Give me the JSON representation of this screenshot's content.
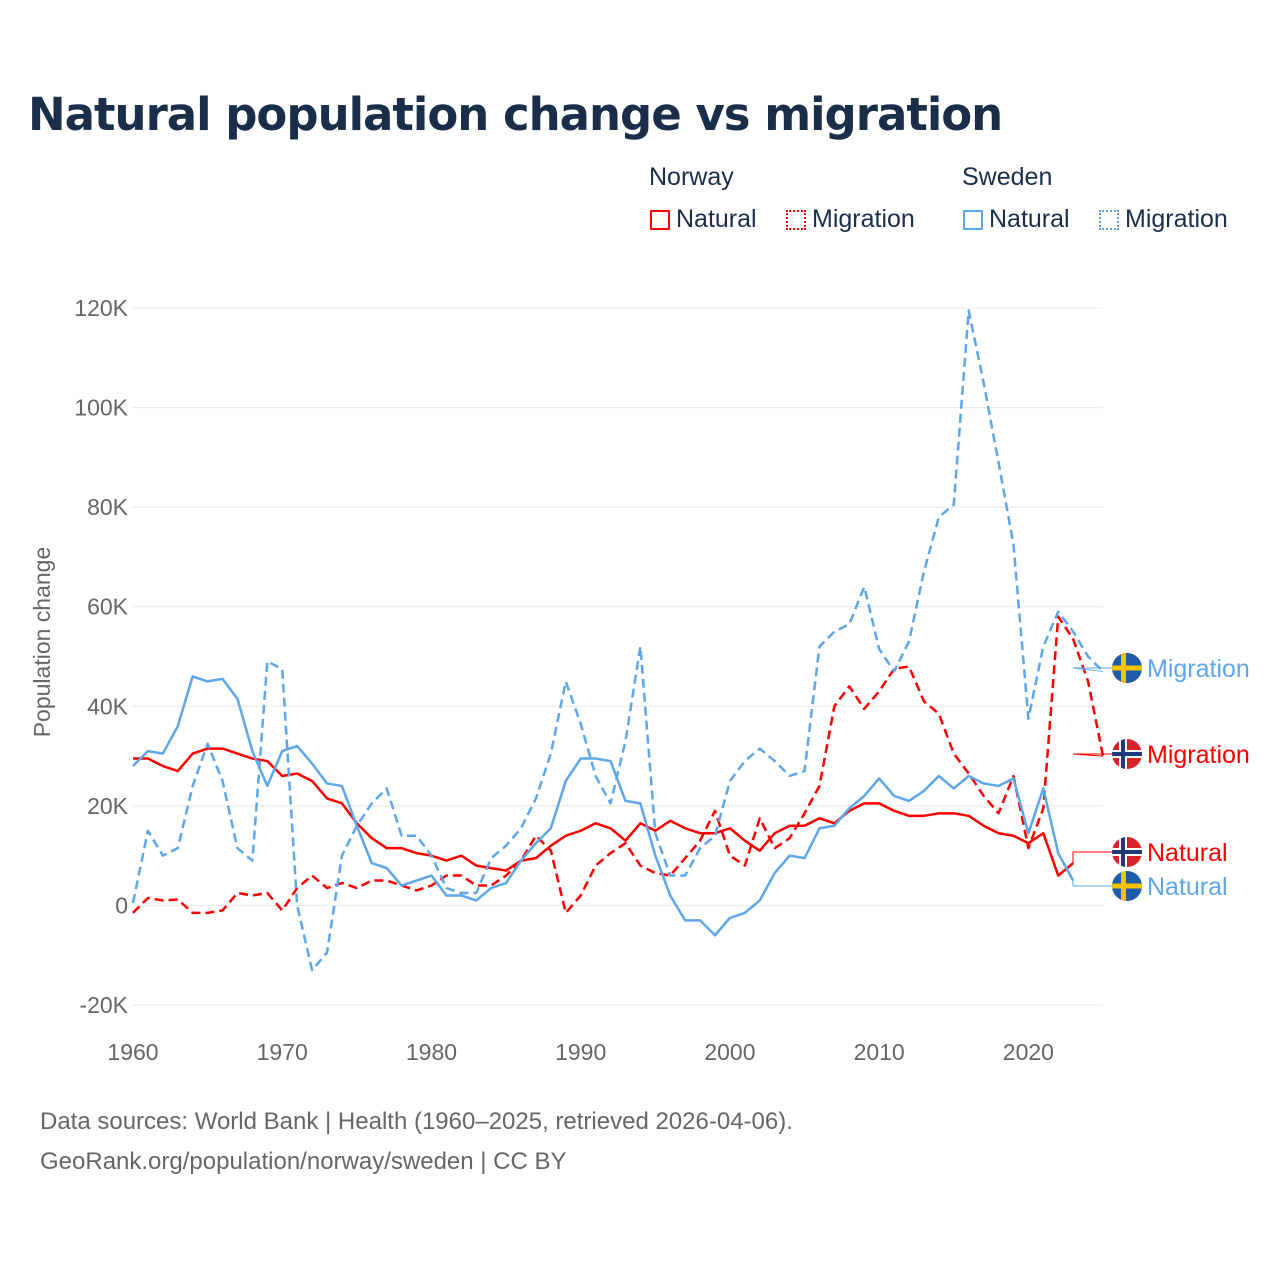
{
  "title": "Natural population change vs migration",
  "legend": {
    "groups": [
      {
        "name": "Norway",
        "items": [
          "Natural",
          "Migration"
        ]
      },
      {
        "name": "Sweden",
        "items": [
          "Natural",
          "Migration"
        ]
      }
    ]
  },
  "colors": {
    "norway": "#ff0000",
    "sweden": "#5ea6ea",
    "title": "#1a2e4a"
  },
  "footer": {
    "line1": "Data sources: World Bank | Health (1960–2025, retrieved 2026-04-06).",
    "line2": "GeoRank.org/population/norway/sweden | CC BY"
  },
  "chart_data": {
    "type": "line",
    "title": "Natural population change vs migration",
    "xlabel": "",
    "ylabel": "Population change",
    "xlim": [
      1960,
      2025
    ],
    "ylim": [
      -20000,
      120000
    ],
    "x_ticks": [
      "1960",
      "1970",
      "1980",
      "1990",
      "2000",
      "2010",
      "2020"
    ],
    "y_ticks": [
      "-20K",
      "0",
      "20K",
      "40K",
      "60K",
      "80K",
      "100K",
      "120K"
    ],
    "grid": true,
    "legend_position": "top-right",
    "end_labels": [
      "Migration",
      "Migration",
      "Natural",
      "Natural"
    ],
    "series": [
      {
        "name": "Norway Natural",
        "country": "Norway",
        "kind": "Natural",
        "style": "solid",
        "start": 1960,
        "values": [
          29500,
          29500,
          28000,
          27000,
          30500,
          31500,
          31500,
          30500,
          29500,
          29000,
          26000,
          26500,
          25000,
          21500,
          20500,
          16500,
          13500,
          11500,
          11500,
          10500,
          10000,
          9000,
          10000,
          8000,
          7500,
          7000,
          9000,
          9500,
          12000,
          14000,
          15000,
          16500,
          15500,
          13000,
          16500,
          15000,
          17000,
          15500,
          14500,
          14500,
          15500,
          13000,
          11000,
          14500,
          16000,
          16000,
          17500,
          16500,
          19000,
          20500,
          20500,
          19000,
          18000,
          18000,
          18500,
          18500,
          18000,
          16000,
          14500,
          14000,
          12500,
          14500,
          6000,
          8500
        ]
      },
      {
        "name": "Norway Migration",
        "country": "Norway",
        "kind": "Migration",
        "style": "dashed",
        "start": 1960,
        "values": [
          -1500,
          1500,
          1000,
          1200,
          -1500,
          -1500,
          -1000,
          2500,
          2000,
          2500,
          -1000,
          3500,
          6000,
          3500,
          4500,
          3500,
          5000,
          5000,
          4000,
          3000,
          4000,
          6000,
          6000,
          4000,
          4000,
          6000,
          9000,
          14000,
          11000,
          -1500,
          2000,
          8000,
          10500,
          12500,
          8000,
          6500,
          6000,
          9500,
          13000,
          19000,
          10000,
          8000,
          17500,
          11500,
          13500,
          18500,
          24000,
          40000,
          44000,
          39500,
          43000,
          47500,
          48000,
          41000,
          38500,
          30500,
          26500,
          22000,
          18500,
          26000,
          11500,
          19500,
          58000,
          53500,
          45000,
          30000
        ]
      },
      {
        "name": "Sweden Natural",
        "country": "Sweden",
        "kind": "Natural",
        "style": "solid",
        "start": 1960,
        "values": [
          28000,
          31000,
          30500,
          36000,
          46000,
          45000,
          45500,
          41500,
          31000,
          24000,
          31000,
          32000,
          28500,
          24500,
          24000,
          16000,
          8500,
          7500,
          4000,
          5000,
          6000,
          2000,
          2000,
          1000,
          3500,
          4500,
          9000,
          12500,
          15500,
          25000,
          29500,
          29500,
          29000,
          21000,
          20500,
          10000,
          2000,
          -3000,
          -3000,
          -6000,
          -2500,
          -1500,
          1000,
          6500,
          10000,
          9500,
          15500,
          16000,
          19500,
          22000,
          25500,
          22000,
          21000,
          23000,
          26000,
          23500,
          26000,
          24500,
          24000,
          25500,
          14500,
          23500,
          10500,
          5000
        ]
      },
      {
        "name": "Sweden Migration",
        "country": "Sweden",
        "kind": "Migration",
        "style": "dashed",
        "start": 1960,
        "values": [
          500,
          15000,
          10000,
          11500,
          24000,
          32500,
          25000,
          11500,
          9000,
          49000,
          47500,
          0,
          -13000,
          -9500,
          10000,
          16000,
          20500,
          23500,
          14000,
          14000,
          10000,
          3500,
          2500,
          2500,
          9500,
          12000,
          15500,
          21500,
          30500,
          45000,
          36500,
          26000,
          20500,
          33000,
          52000,
          14500,
          6000,
          6000,
          11500,
          14000,
          25000,
          29000,
          31500,
          29000,
          26000,
          27000,
          52000,
          55000,
          56500,
          64000,
          51500,
          47000,
          53000,
          67000,
          78000,
          80500,
          119500,
          105000,
          89000,
          72500,
          37500,
          52000,
          59000,
          55000,
          50000,
          47000
        ]
      }
    ]
  }
}
